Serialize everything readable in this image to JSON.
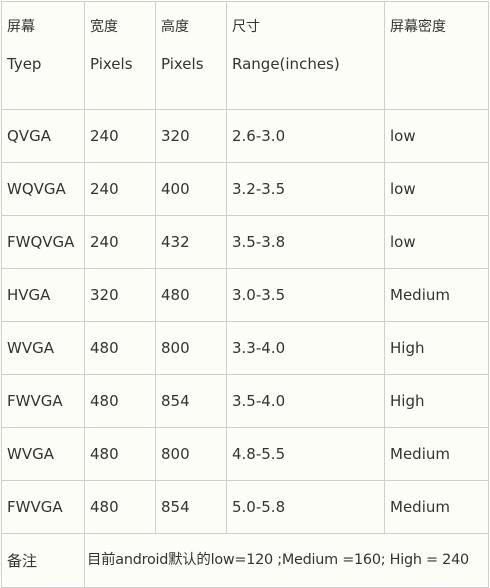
{
  "table": {
    "headers": [
      {
        "line1": "屏幕",
        "line2": "Tyep"
      },
      {
        "line1": "宽度",
        "line2": "Pixels"
      },
      {
        "line1": "高度",
        "line2": "Pixels"
      },
      {
        "line1": "尺寸",
        "line2": "Range(inches)"
      },
      {
        "line1": "屏幕密度",
        "line2": ""
      }
    ],
    "rows": [
      [
        "QVGA",
        "240",
        "320",
        "2.6-3.0",
        "low"
      ],
      [
        "WQVGA",
        "240",
        "400",
        "3.2-3.5",
        "low"
      ],
      [
        "FWQVGA",
        "240",
        "432",
        "3.5-3.8",
        "low"
      ],
      [
        "HVGA",
        "320",
        "480",
        "3.0-3.5",
        "Medium"
      ],
      [
        "WVGA",
        "480",
        "800",
        "3.3-4.0",
        "High"
      ],
      [
        "FWVGA",
        "480",
        "854",
        "3.5-4.0",
        "High"
      ],
      [
        "WVGA",
        "480",
        "800",
        "4.8-5.5",
        "Medium"
      ],
      [
        "FWVGA",
        "480",
        "854",
        "5.0-5.8",
        "Medium"
      ]
    ],
    "note": {
      "label": "备注",
      "text": "目前android默认的low=120 ;Medium =160; High = 240"
    }
  }
}
